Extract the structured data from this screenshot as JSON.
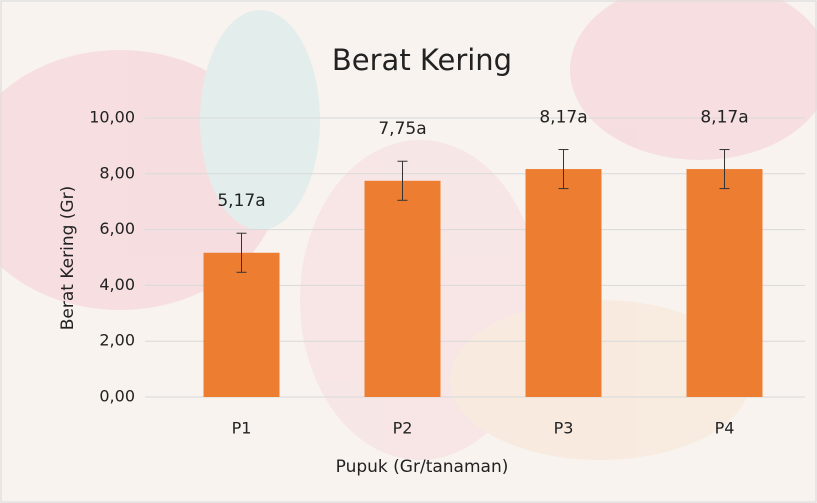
{
  "chart_data": {
    "type": "bar",
    "title": "Berat Kering",
    "x_label": "Pupuk (Gr/tanaman)",
    "y_label": "Berat Kering (Gr)",
    "categories": [
      "P1",
      "P2",
      "P3",
      "P4"
    ],
    "values": [
      5.17,
      7.75,
      8.17,
      8.17
    ],
    "value_labels": [
      "5,17a",
      "7,75a",
      "8,17a",
      "8,17a"
    ],
    "errors": [
      0.7,
      0.7,
      0.7,
      0.7
    ],
    "color": "#ed7d31",
    "ylim": [
      0,
      10
    ],
    "yticks": [
      {
        "value": 0,
        "label": "0,00"
      },
      {
        "value": 2,
        "label": "2,00"
      },
      {
        "value": 4,
        "label": "4,00"
      },
      {
        "value": 6,
        "label": "6,00"
      },
      {
        "value": 8,
        "label": "8,00"
      },
      {
        "value": 10,
        "label": "10,00"
      }
    ],
    "grid": true
  }
}
